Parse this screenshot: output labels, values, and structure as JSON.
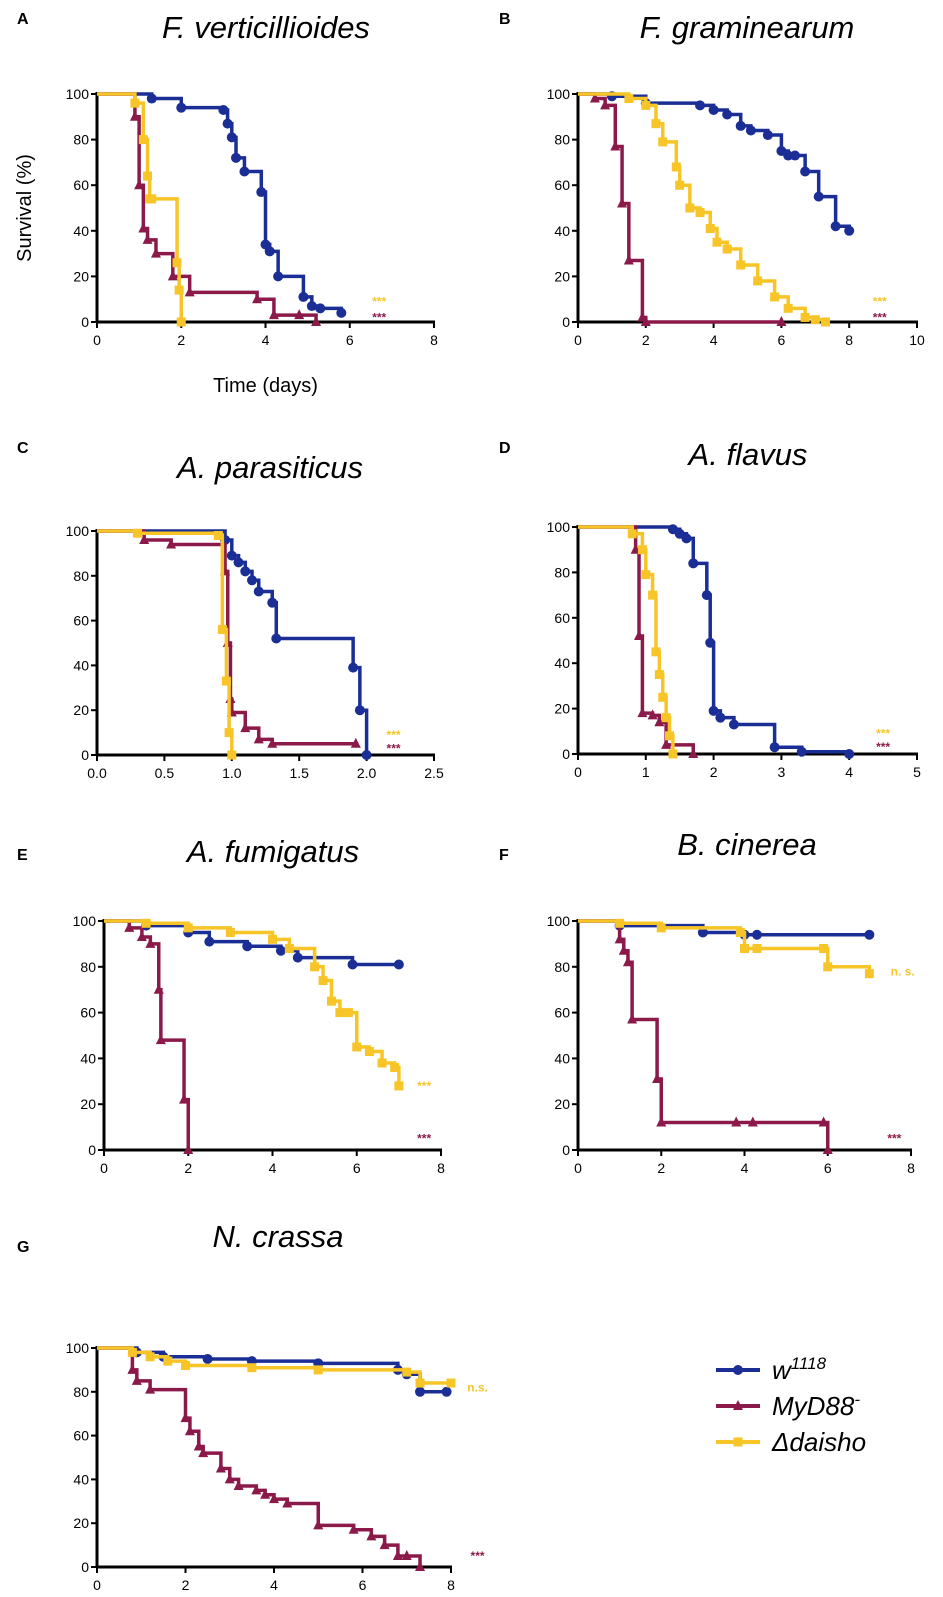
{
  "colors": {
    "w1118": "#1a2e95",
    "MyD88": "#8b1a4a",
    "daisho": "#f7c527"
  },
  "legend": [
    {
      "series": "w1118",
      "label": "w",
      "sup": "1118",
      "marker": "circle"
    },
    {
      "series": "MyD88",
      "label": "MyD88",
      "sup": "-",
      "marker": "triangle"
    },
    {
      "series": "daisho",
      "label": "Δdaisho",
      "sup": "",
      "marker": "square"
    }
  ],
  "chart_data": [
    {
      "panel": "A",
      "title": "F. verticillioides",
      "type": "line",
      "xlabel": "Time (days)",
      "ylabel": "Survival (%)",
      "xlim": [
        0,
        8
      ],
      "ylim": [
        0,
        100
      ],
      "xticks": [
        "0",
        "2",
        "4",
        "6",
        "8"
      ],
      "yticks": [
        "0",
        "20",
        "40",
        "60",
        "80",
        "100"
      ],
      "series": [
        {
          "id": "w1118",
          "name": "w1118",
          "x": [
            0,
            1.3,
            2,
            3,
            3.1,
            3.2,
            3.3,
            3.5,
            3.9,
            4.0,
            4.1,
            4.3,
            4.9,
            5.1,
            5.3,
            5.8
          ],
          "y": [
            100,
            98,
            94,
            93,
            87,
            81,
            72,
            66,
            57,
            34,
            31,
            20,
            11,
            7,
            6,
            4
          ]
        },
        {
          "id": "MyD88",
          "name": "MyD88-",
          "x": [
            0,
            0.9,
            1.0,
            1.1,
            1.2,
            1.4,
            1.8,
            2.2,
            3.8,
            4.2,
            4.8,
            5.2
          ],
          "y": [
            100,
            90,
            60,
            41,
            36,
            30,
            20,
            13,
            10,
            3,
            3,
            0
          ]
        },
        {
          "id": "daisho",
          "name": "Δdaisho",
          "x": [
            0,
            0.9,
            1.1,
            1.2,
            1.25,
            1.3,
            1.9,
            1.95,
            2.0
          ],
          "y": [
            100,
            96,
            80,
            64,
            54,
            54,
            26,
            14,
            0
          ]
        }
      ],
      "annotations": [
        {
          "text": "***",
          "series": "daisho",
          "x": 6.7,
          "y": 9
        },
        {
          "text": "***",
          "series": "MyD88",
          "x": 6.7,
          "y": 2
        }
      ]
    },
    {
      "panel": "B",
      "title": "F. graminearum",
      "type": "line",
      "xlim": [
        0,
        10
      ],
      "ylim": [
        0,
        100
      ],
      "xticks": [
        "0",
        "2",
        "4",
        "6",
        "8",
        "10"
      ],
      "yticks": [
        "0",
        "20",
        "40",
        "60",
        "80",
        "100"
      ],
      "series": [
        {
          "id": "w1118",
          "name": "w1118",
          "x": [
            0,
            1,
            2,
            3.6,
            4.0,
            4.4,
            4.8,
            5.1,
            5.6,
            6.0,
            6.2,
            6.4,
            6.7,
            7.1,
            7.6,
            8.0
          ],
          "y": [
            100,
            99,
            96,
            95,
            93,
            91,
            86,
            84,
            82,
            75,
            73,
            73,
            66,
            55,
            42,
            40
          ]
        },
        {
          "id": "MyD88",
          "name": "MyD88-",
          "x": [
            0,
            0.5,
            0.8,
            1.1,
            1.3,
            1.5,
            1.9,
            2.0,
            6.0
          ],
          "y": [
            100,
            98,
            95,
            77,
            52,
            27,
            2,
            0,
            0
          ]
        },
        {
          "id": "daisho",
          "name": "Δdaisho",
          "x": [
            0,
            1.5,
            2.0,
            2.3,
            2.5,
            2.9,
            3.0,
            3.3,
            3.6,
            3.9,
            4.1,
            4.4,
            4.8,
            5.3,
            5.8,
            6.2,
            6.7,
            7.0,
            7.3
          ],
          "y": [
            100,
            98,
            95,
            87,
            79,
            68,
            60,
            50,
            48,
            41,
            35,
            32,
            25,
            18,
            11,
            6,
            2,
            1,
            0
          ]
        }
      ],
      "annotations": [
        {
          "text": "***",
          "series": "daisho",
          "x": 8.9,
          "y": 9
        },
        {
          "text": "***",
          "series": "MyD88",
          "x": 8.9,
          "y": 2
        }
      ]
    },
    {
      "panel": "C",
      "title": "A. parasiticus",
      "type": "line",
      "xlim": [
        0,
        2.5
      ],
      "ylim": [
        0,
        100
      ],
      "xticks": [
        "0.0",
        "0.5",
        "1.0",
        "1.5",
        "2.0",
        "2.5"
      ],
      "yticks": [
        "0",
        "20",
        "40",
        "60",
        "80",
        "100"
      ],
      "series": [
        {
          "id": "w1118",
          "name": "w1118",
          "x": [
            0,
            0.95,
            1.0,
            1.05,
            1.1,
            1.15,
            1.2,
            1.3,
            1.33,
            1.9,
            1.95,
            2.0
          ],
          "y": [
            100,
            96,
            89,
            86,
            82,
            78,
            73,
            68,
            52,
            39,
            20,
            0
          ]
        },
        {
          "id": "MyD88",
          "name": "MyD88-",
          "x": [
            0,
            0.35,
            0.55,
            0.95,
            0.97,
            0.99,
            1.0,
            1.1,
            1.2,
            1.3,
            1.92
          ],
          "y": [
            100,
            96,
            94,
            82,
            50,
            25,
            19,
            12,
            7,
            5,
            5
          ]
        },
        {
          "id": "daisho",
          "name": "Δdaisho",
          "x": [
            0,
            0.3,
            0.9,
            0.93,
            0.96,
            0.98,
            1.0
          ],
          "y": [
            100,
            99,
            98,
            56,
            33,
            10,
            0
          ]
        }
      ],
      "annotations": [
        {
          "text": "***",
          "series": "daisho",
          "x": 2.2,
          "y": 9
        },
        {
          "text": "***",
          "series": "MyD88",
          "x": 2.2,
          "y": 3
        }
      ]
    },
    {
      "panel": "D",
      "title": "A. flavus",
      "type": "line",
      "xlim": [
        0,
        5
      ],
      "ylim": [
        0,
        100
      ],
      "xticks": [
        "0",
        "1",
        "2",
        "3",
        "4",
        "5"
      ],
      "yticks": [
        "0",
        "20",
        "40",
        "60",
        "80",
        "100"
      ],
      "series": [
        {
          "id": "w1118",
          "name": "w1118",
          "x": [
            0,
            1.4,
            1.5,
            1.6,
            1.7,
            1.9,
            1.95,
            2.0,
            2.1,
            2.3,
            2.9,
            3.3,
            4.0
          ],
          "y": [
            100,
            99,
            97,
            95,
            84,
            70,
            49,
            19,
            16,
            13,
            3,
            1,
            0
          ]
        },
        {
          "id": "MyD88",
          "name": "MyD88-",
          "x": [
            0,
            0.85,
            0.9,
            0.95,
            1.1,
            1.2,
            1.3,
            1.7
          ],
          "y": [
            100,
            90,
            52,
            18,
            17,
            14,
            4,
            0
          ]
        },
        {
          "id": "daisho",
          "name": "Δdaisho",
          "x": [
            0,
            0.8,
            0.95,
            1.0,
            1.1,
            1.15,
            1.2,
            1.25,
            1.3,
            1.35,
            1.4
          ],
          "y": [
            100,
            97,
            90,
            79,
            70,
            45,
            35,
            25,
            16,
            8,
            0
          ]
        }
      ],
      "annotations": [
        {
          "text": "***",
          "series": "daisho",
          "x": 4.5,
          "y": 9
        },
        {
          "text": "***",
          "series": "MyD88",
          "x": 4.5,
          "y": 3
        }
      ]
    },
    {
      "panel": "E",
      "title": "A. fumigatus",
      "type": "line",
      "xlim": [
        0,
        8
      ],
      "ylim": [
        0,
        100
      ],
      "xticks": [
        "0",
        "2",
        "4",
        "6",
        "8"
      ],
      "yticks": [
        "0",
        "20",
        "40",
        "60",
        "80",
        "100"
      ],
      "series": [
        {
          "id": "w1118",
          "name": "w1118",
          "x": [
            0,
            1,
            2,
            2.5,
            3.4,
            4.2,
            4.6,
            5.9,
            7.0
          ],
          "y": [
            100,
            98,
            95,
            91,
            89,
            87,
            84,
            81,
            81
          ]
        },
        {
          "id": "MyD88",
          "name": "MyD88-",
          "x": [
            0,
            0.6,
            0.9,
            1.1,
            1.3,
            1.35,
            1.9,
            2.0
          ],
          "y": [
            100,
            97,
            93,
            90,
            70,
            48,
            22,
            0
          ]
        },
        {
          "id": "daisho",
          "name": "Δdaisho",
          "x": [
            0,
            1.0,
            2.0,
            3.0,
            4.0,
            4.4,
            5.0,
            5.2,
            5.4,
            5.6,
            5.8,
            6.0,
            6.3,
            6.6,
            6.9,
            7.0
          ],
          "y": [
            100,
            99,
            97,
            95,
            92,
            88,
            80,
            74,
            65,
            60,
            60,
            45,
            43,
            38,
            36,
            28
          ]
        }
      ],
      "annotations": [
        {
          "text": "***",
          "series": "daisho",
          "x": 7.6,
          "y": 28
        },
        {
          "text": "***",
          "series": "MyD88",
          "x": 7.6,
          "y": 5
        }
      ]
    },
    {
      "panel": "F",
      "title": "B. cinerea",
      "type": "line",
      "xlim": [
        0,
        8
      ],
      "ylim": [
        0,
        100
      ],
      "xticks": [
        "0",
        "2",
        "4",
        "6",
        "8"
      ],
      "yticks": [
        "0",
        "20",
        "40",
        "60",
        "80",
        "100"
      ],
      "series": [
        {
          "id": "w1118",
          "name": "w1118",
          "x": [
            0,
            1,
            3,
            4,
            4.3,
            7.0
          ],
          "y": [
            100,
            98,
            95,
            94,
            94,
            94
          ]
        },
        {
          "id": "MyD88",
          "name": "MyD88-",
          "x": [
            0,
            1.0,
            1.1,
            1.2,
            1.3,
            1.9,
            2.0,
            3.8,
            4.2,
            5.9,
            6.0
          ],
          "y": [
            100,
            92,
            87,
            82,
            57,
            31,
            12,
            12,
            12,
            12,
            0
          ]
        },
        {
          "id": "daisho",
          "name": "Δdaisho",
          "x": [
            0,
            1.0,
            2.0,
            3.9,
            4.0,
            4.3,
            5.9,
            6.0,
            7.0
          ],
          "y": [
            100,
            99,
            97,
            95,
            88,
            88,
            88,
            80,
            77
          ]
        }
      ],
      "annotations": [
        {
          "text": "n. s.",
          "series": "daisho",
          "x": 7.8,
          "y": 78
        },
        {
          "text": "***",
          "series": "MyD88",
          "x": 7.6,
          "y": 5
        }
      ]
    },
    {
      "panel": "G",
      "title": "N. crassa",
      "type": "line",
      "xlim": [
        0,
        8
      ],
      "ylim": [
        0,
        100
      ],
      "xticks": [
        "0",
        "2",
        "4",
        "6",
        "8"
      ],
      "yticks": [
        "0",
        "20",
        "40",
        "60",
        "80",
        "100"
      ],
      "series": [
        {
          "id": "w1118",
          "name": "w1118",
          "x": [
            0,
            0.9,
            1.5,
            2.5,
            3.5,
            5.0,
            6.8,
            7.0,
            7.3,
            7.9
          ],
          "y": [
            100,
            98,
            96,
            95,
            94,
            93,
            90,
            88,
            80,
            80
          ]
        },
        {
          "id": "MyD88",
          "name": "MyD88-",
          "x": [
            0,
            0.8,
            0.9,
            1.2,
            2.0,
            2.1,
            2.3,
            2.4,
            2.8,
            3.0,
            3.2,
            3.6,
            3.8,
            4.0,
            4.3,
            5.0,
            5.8,
            6.2,
            6.5,
            6.8,
            7.0,
            7.3
          ],
          "y": [
            100,
            90,
            85,
            81,
            68,
            62,
            55,
            52,
            45,
            40,
            37,
            35,
            33,
            31,
            29,
            19,
            17,
            14,
            10,
            5,
            5,
            0
          ]
        },
        {
          "id": "daisho",
          "name": "Δdaisho",
          "x": [
            0,
            0.8,
            1.2,
            1.6,
            2.0,
            3.5,
            5.0,
            7.0,
            7.3,
            8.0
          ],
          "y": [
            100,
            98,
            96,
            94,
            92,
            91,
            90,
            89,
            84,
            84
          ]
        }
      ],
      "annotations": [
        {
          "text": "n.s.",
          "series": "daisho",
          "x": 8.6,
          "y": 82
        },
        {
          "text": "***",
          "series": "MyD88",
          "x": 8.6,
          "y": 5
        }
      ]
    }
  ]
}
